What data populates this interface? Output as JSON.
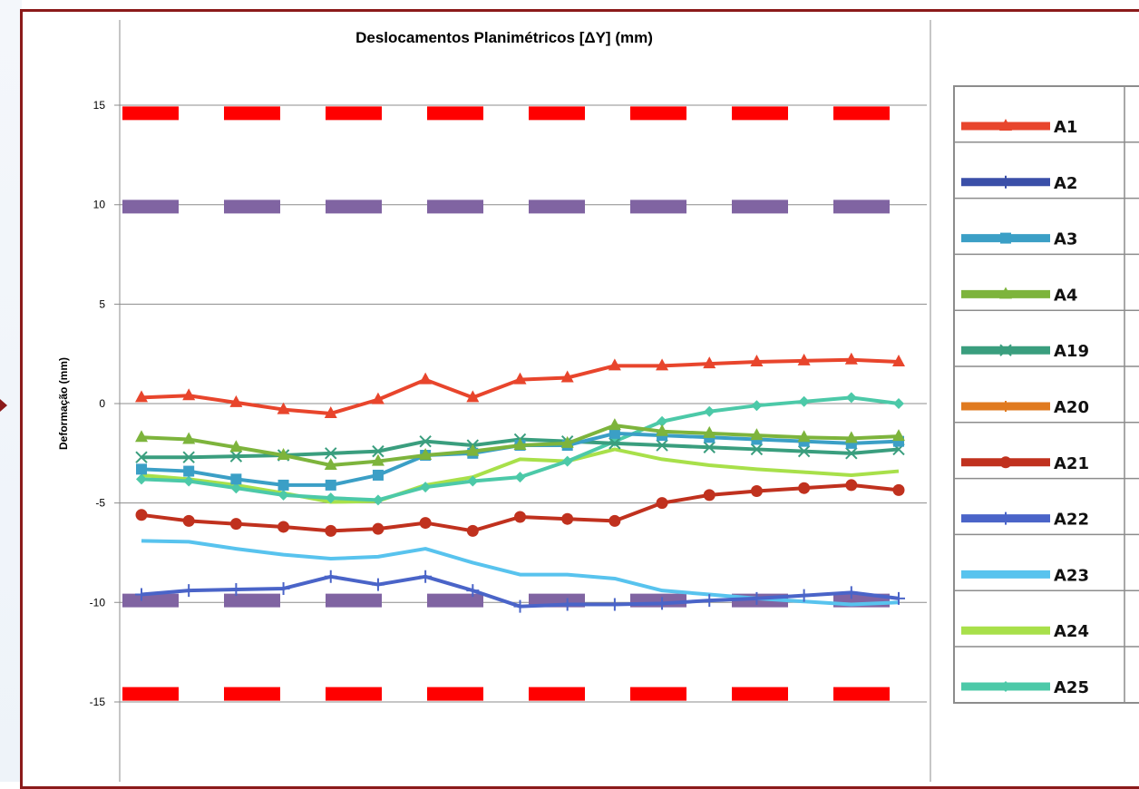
{
  "chart_data": {
    "type": "line",
    "title": "Deslocamentos Planimétricos [ΔY] (mm)",
    "xlabel": "",
    "ylabel": "Deformação (mm)",
    "ylim": [
      -19,
      19
    ],
    "yticks": [
      15,
      10,
      5,
      0,
      -5,
      -10,
      -15
    ],
    "grid": true,
    "legend_position": "right",
    "series": [
      {
        "name": "A1",
        "color": "#e8452c",
        "marker": "triangle",
        "values": [
          0.3,
          0.4,
          0.05,
          -0.3,
          -0.5,
          0.2,
          1.2,
          0.3,
          1.2,
          1.3,
          1.9,
          1.9,
          2.0,
          2.1,
          2.15,
          2.2,
          2.1
        ]
      },
      {
        "name": "A2",
        "color": "#3a4fa8",
        "marker": "plus",
        "values": [
          null,
          null,
          null,
          null,
          null,
          null,
          null,
          null,
          null,
          null,
          null,
          null,
          null,
          null,
          null,
          null,
          null
        ]
      },
      {
        "name": "A3",
        "color": "#3b9fc6",
        "marker": "square",
        "values": [
          -3.3,
          -3.4,
          -3.8,
          -4.1,
          -4.1,
          -3.6,
          -2.6,
          -2.5,
          -2.1,
          -2.1,
          -1.5,
          -1.6,
          -1.7,
          -1.8,
          -1.9,
          -2.0,
          -1.9
        ]
      },
      {
        "name": "A4",
        "color": "#7db43c",
        "marker": "triangle",
        "values": [
          -1.7,
          -1.8,
          -2.2,
          -2.6,
          -3.1,
          -2.9,
          -2.6,
          -2.4,
          -2.1,
          -2.0,
          -1.1,
          -1.4,
          -1.5,
          -1.6,
          -1.7,
          -1.75,
          -1.65
        ]
      },
      {
        "name": "A19",
        "color": "#3a9e7e",
        "marker": "x",
        "values": [
          -2.7,
          -2.7,
          -2.65,
          -2.6,
          -2.5,
          -2.4,
          -1.9,
          -2.1,
          -1.8,
          -1.9,
          -2.0,
          -2.1,
          -2.2,
          -2.3,
          -2.4,
          -2.5,
          -2.3
        ]
      },
      {
        "name": "A20",
        "color": "#e07a1f",
        "marker": "asterisk",
        "values": [
          null,
          null,
          null,
          null,
          null,
          null,
          null,
          null,
          null,
          null,
          null,
          null,
          null,
          null,
          null,
          null,
          null
        ]
      },
      {
        "name": "A21",
        "color": "#c0311e",
        "marker": "circle",
        "values": [
          -5.6,
          -5.9,
          -6.05,
          -6.2,
          -6.4,
          -6.3,
          -6.0,
          -6.4,
          -5.7,
          -5.8,
          -5.9,
          -5.0,
          -4.6,
          -4.4,
          -4.25,
          -4.1,
          -4.35
        ]
      },
      {
        "name": "A22",
        "color": "#4a64c8",
        "marker": "plus",
        "values": [
          -9.6,
          -9.4,
          -9.35,
          -9.3,
          -8.7,
          -9.1,
          -8.7,
          -9.4,
          -10.2,
          -10.1,
          -10.1,
          -10.05,
          -9.9,
          -9.8,
          -9.65,
          -9.5,
          -9.8
        ]
      },
      {
        "name": "A23",
        "color": "#58c3ee",
        "marker": "none",
        "values": [
          -6.9,
          -6.95,
          -7.3,
          -7.6,
          -7.8,
          -7.7,
          -7.3,
          -8.0,
          -8.6,
          -8.6,
          -8.8,
          -9.4,
          -9.6,
          -9.8,
          -9.95,
          -10.1,
          -10.0
        ]
      },
      {
        "name": "A24",
        "color": "#a8e04a",
        "marker": "none",
        "values": [
          -3.6,
          -3.8,
          -4.1,
          -4.5,
          -4.95,
          -4.9,
          -4.1,
          -3.7,
          -2.8,
          -2.9,
          -2.3,
          -2.8,
          -3.1,
          -3.3,
          -3.45,
          -3.6,
          -3.4
        ]
      },
      {
        "name": "A25",
        "color": "#4cc9a8",
        "marker": "diamond",
        "values": [
          -3.8,
          -3.9,
          -4.25,
          -4.6,
          -4.75,
          -4.85,
          -4.2,
          -3.9,
          -3.7,
          -2.9,
          -1.9,
          -0.9,
          -0.4,
          -0.1,
          0.1,
          0.3,
          0.0
        ]
      }
    ],
    "limit_lines": [
      {
        "value": 14.6,
        "color": "#ff0000",
        "style": "dashed"
      },
      {
        "value": -14.6,
        "color": "#ff0000",
        "style": "dashed"
      },
      {
        "value": 9.9,
        "color": "#8064a2",
        "style": "dashed"
      },
      {
        "value": -9.9,
        "color": "#8064a2",
        "style": "dashed"
      }
    ]
  }
}
